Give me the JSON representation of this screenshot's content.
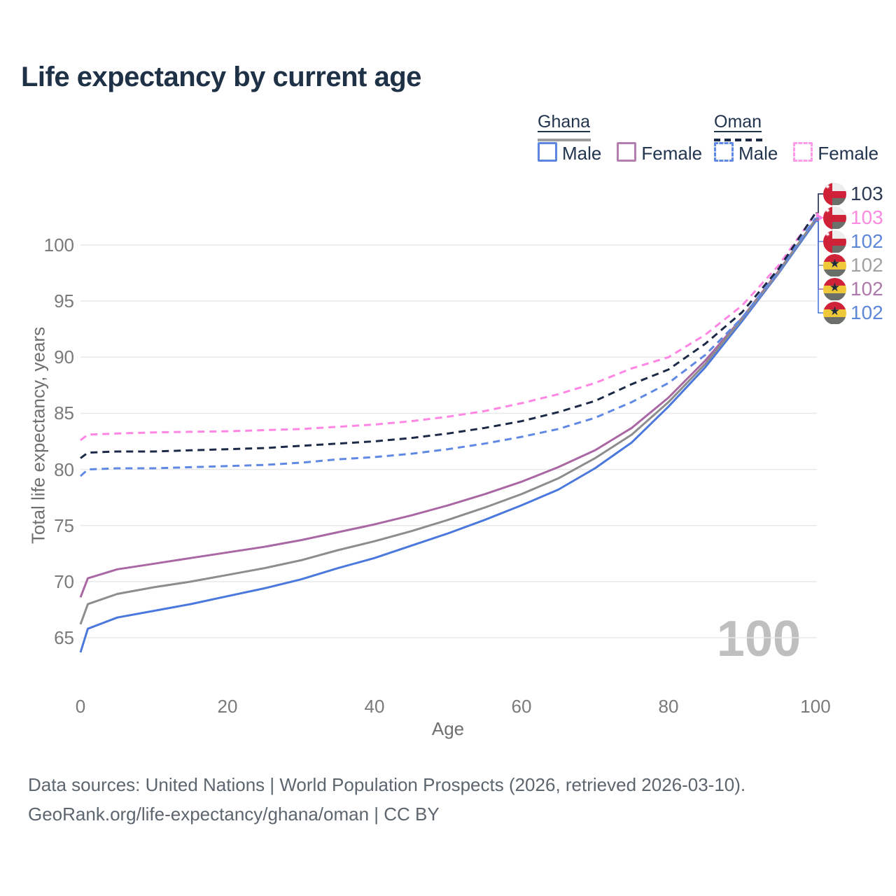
{
  "title": "Life expectancy by current age",
  "legend": {
    "groups": [
      {
        "label": "Ghana",
        "line_style": "solid",
        "combined_swatch_color": "#9b9fa0",
        "items": [
          {
            "label": "Male",
            "color": "#5d87de"
          },
          {
            "label": "Female",
            "color": "#b37fb0"
          }
        ]
      },
      {
        "label": "Oman",
        "line_style": "dashed",
        "combined_swatch_color": "#1c2a47",
        "items": [
          {
            "label": "Male",
            "color": "#6089e3"
          },
          {
            "label": "Female",
            "color": "#ff9be9"
          }
        ]
      }
    ]
  },
  "watermark": "100",
  "end_labels": [
    {
      "value": "103",
      "color": "#2e3a55",
      "flag": "oman",
      "series": "Oman Both sexes",
      "arrow": false
    },
    {
      "value": "103",
      "color": "#fc8ae0",
      "flag": "oman",
      "series": "Oman Female",
      "arrow": true
    },
    {
      "value": "102",
      "color": "#5d87d9",
      "flag": "oman",
      "series": "Oman Male",
      "arrow": false
    },
    {
      "value": "102",
      "color": "#a2a2a2",
      "flag": "ghana",
      "series": "Ghana Both sexes",
      "arrow": false
    },
    {
      "value": "102",
      "color": "#ad79ab",
      "flag": "ghana",
      "series": "Ghana Female",
      "arrow": false
    },
    {
      "value": "102",
      "color": "#5d87d9",
      "flag": "ghana",
      "series": "Ghana Male",
      "arrow": false
    }
  ],
  "chart_data": {
    "type": "line",
    "title": "Life expectancy by current age",
    "xlabel": "Age",
    "ylabel": "Total life expectancy, years",
    "xlim": [
      0,
      100
    ],
    "ylim": [
      63,
      104
    ],
    "x_ticks": [
      0,
      20,
      40,
      60,
      80,
      100
    ],
    "y_ticks": [
      65,
      70,
      75,
      80,
      85,
      90,
      95,
      100
    ],
    "grid": "horizontal",
    "x": [
      0,
      1,
      5,
      10,
      15,
      20,
      25,
      30,
      35,
      40,
      45,
      50,
      55,
      60,
      65,
      70,
      75,
      80,
      85,
      90,
      95,
      100
    ],
    "series": [
      {
        "name": "Oman Both sexes",
        "country": "Oman",
        "sex": "Both",
        "dash": true,
        "color": "#1c2a47",
        "values": [
          81.0,
          81.5,
          81.6,
          81.6,
          81.7,
          81.8,
          81.9,
          82.1,
          82.3,
          82.5,
          82.8,
          83.2,
          83.7,
          84.3,
          85.1,
          86.1,
          87.6,
          88.9,
          91.2,
          94.0,
          97.9,
          102.85
        ]
      },
      {
        "name": "Oman Female",
        "country": "Oman",
        "sex": "Female",
        "dash": true,
        "color": "#ff86e3",
        "values": [
          82.6,
          83.1,
          83.2,
          83.3,
          83.35,
          83.4,
          83.5,
          83.6,
          83.8,
          84.0,
          84.3,
          84.7,
          85.2,
          85.9,
          86.7,
          87.7,
          89.0,
          90.0,
          92.0,
          94.6,
          98.2,
          102.8
        ]
      },
      {
        "name": "Oman Male",
        "country": "Oman",
        "sex": "Male",
        "dash": true,
        "color": "#6089e3",
        "values": [
          79.4,
          80.0,
          80.1,
          80.1,
          80.2,
          80.3,
          80.4,
          80.6,
          80.9,
          81.1,
          81.4,
          81.8,
          82.3,
          82.9,
          83.6,
          84.6,
          86.0,
          87.7,
          90.2,
          93.5,
          97.7,
          102.4
        ]
      },
      {
        "name": "Ghana Both sexes",
        "country": "Ghana",
        "sex": "Both",
        "dash": false,
        "color": "#8d8d8d",
        "values": [
          66.2,
          68.0,
          68.9,
          69.5,
          70.0,
          70.6,
          71.2,
          71.9,
          72.8,
          73.6,
          74.5,
          75.5,
          76.6,
          77.8,
          79.2,
          81.0,
          83.1,
          86.0,
          89.4,
          93.4,
          97.6,
          102.3
        ]
      },
      {
        "name": "Ghana Female",
        "country": "Ghana",
        "sex": "Female",
        "dash": false,
        "color": "#a967a4",
        "values": [
          68.6,
          70.3,
          71.1,
          71.6,
          72.1,
          72.6,
          73.1,
          73.7,
          74.4,
          75.1,
          75.9,
          76.8,
          77.8,
          78.9,
          80.2,
          81.7,
          83.7,
          86.4,
          89.7,
          93.5,
          97.7,
          102.25
        ]
      },
      {
        "name": "Ghana Male",
        "country": "Ghana",
        "sex": "Male",
        "dash": false,
        "color": "#4a78dd",
        "values": [
          63.7,
          65.8,
          66.8,
          67.4,
          68.0,
          68.7,
          69.4,
          70.2,
          71.2,
          72.1,
          73.2,
          74.3,
          75.5,
          76.8,
          78.2,
          80.1,
          82.4,
          85.6,
          89.1,
          93.2,
          97.5,
          102.1
        ]
      }
    ]
  },
  "footer": {
    "line1": "Data sources: United Nations | World Population Prospects (2026, retrieved 2026-03-10).",
    "line2": "GeoRank.org/life-expectancy/ghana/oman | CC BY"
  }
}
